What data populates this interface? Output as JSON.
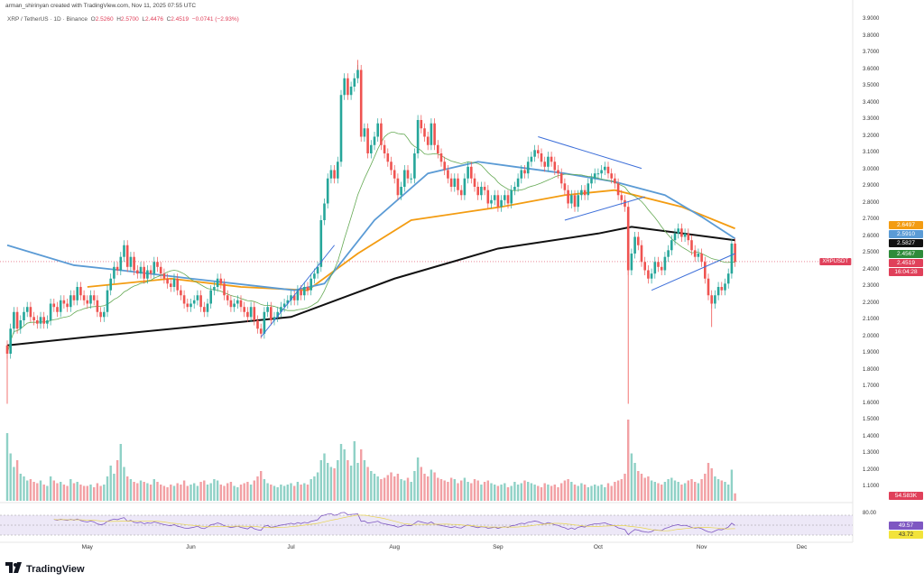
{
  "credit": "arman_shirinyan created with TradingView.com, Nov 11, 2025 07:55 UTC",
  "legend": {
    "symbol": "XRP / TetherUS · 1D · Binance",
    "o_label": "O",
    "o": "2.5260",
    "h_label": "H",
    "h": "2.5700",
    "l_label": "L",
    "l": "2.4476",
    "c_label": "C",
    "c": "2.4519",
    "change": "−0.0741 (−2.93%)"
  },
  "brand": "TradingView",
  "tags": {
    "ma_orange": {
      "text": "2.6497",
      "color": "#f39c12"
    },
    "ma_blue": {
      "text": "2.5910",
      "color": "#5b9bd5"
    },
    "ma_black": {
      "text": "2.5827",
      "color": "#111111"
    },
    "ma_green": {
      "text": "2.4567",
      "color": "#2e8b3a"
    },
    "price": {
      "text": "2.4519",
      "color": "#e0405a"
    },
    "countdown": {
      "text": "16:04:28",
      "color": "#e0405a"
    },
    "symbol": "XRPUSDT",
    "volume": {
      "text": "54.583K",
      "color": "#e0405a"
    },
    "rsi": {
      "text": "49.57",
      "color": "#7e57c2"
    },
    "rsi_ma": {
      "text": "43.72",
      "color": "#f2e33a"
    },
    "rsi_level": "80.00"
  },
  "chart_data": {
    "type": "candlestick",
    "price_ticks": [
      "3.9000",
      "3.8000",
      "3.7000",
      "3.6000",
      "3.5000",
      "3.4000",
      "3.3000",
      "3.2000",
      "3.1000",
      "3.0000",
      "2.9000",
      "2.8000",
      "2.7000",
      "2.6000",
      "2.5000",
      "2.4000",
      "2.3000",
      "2.2000",
      "2.1000",
      "2.0000",
      "1.9000",
      "1.8000",
      "1.7000",
      "1.6000",
      "1.5000",
      "1.4000",
      "1.3000",
      "1.2000",
      "1.1000"
    ],
    "x_ticks": [
      "May",
      "Jun",
      "Jul",
      "Aug",
      "Sep",
      "Oct",
      "Nov",
      "Dec"
    ],
    "closes": {
      "Apr": [
        1.9,
        2.05,
        2.15,
        2.05,
        2.1,
        2.15,
        2.18,
        2.12,
        2.1,
        2.08,
        2.12,
        2.08,
        2.1,
        2.2,
        2.18,
        2.15,
        2.22,
        2.2,
        2.18,
        2.25,
        2.22,
        2.3,
        2.25,
        2.22
      ],
      "May": [
        2.2,
        2.25,
        2.22,
        2.15,
        2.12,
        2.15,
        2.28,
        2.35,
        2.42,
        2.4,
        2.48,
        2.55,
        2.42,
        2.48,
        2.4,
        2.38,
        2.42,
        2.35,
        2.4,
        2.38,
        2.45,
        2.42,
        2.38,
        2.35,
        2.32,
        2.3,
        2.35,
        2.28,
        2.25,
        2.2,
        2.18
      ],
      "Jun": [
        2.2,
        2.22,
        2.25,
        2.18,
        2.15,
        2.2,
        2.28,
        2.3,
        2.35,
        2.32,
        2.25,
        2.22,
        2.18,
        2.2,
        2.22,
        2.18,
        2.15,
        2.12,
        2.18,
        2.1,
        2.05,
        2.02,
        2.15,
        2.18,
        2.1,
        2.12,
        2.15,
        2.18,
        2.2,
        2.22
      ],
      "Jul": [
        2.25,
        2.22,
        2.28,
        2.25,
        2.3,
        2.28,
        2.35,
        2.38,
        2.42,
        2.7,
        2.8,
        2.95,
        3.0,
        2.95,
        3.05,
        3.45,
        3.55,
        3.45,
        3.5,
        3.55,
        3.6,
        3.2,
        3.25,
        3.1,
        3.15,
        3.2,
        3.28,
        3.15,
        3.1,
        3.05,
        3.0
      ],
      "Aug": [
        2.95,
        2.85,
        2.9,
        3.0,
        2.95,
        2.95,
        3.1,
        3.3,
        3.25,
        3.2,
        3.15,
        3.28,
        3.15,
        3.1,
        3.05,
        3.0,
        2.95,
        2.9,
        2.95,
        2.88,
        2.85,
        2.95,
        3.02,
        2.95,
        2.9,
        2.85,
        2.9,
        2.88,
        2.8,
        2.82,
        2.85
      ],
      "Sep": [
        2.78,
        2.82,
        2.85,
        2.8,
        2.88,
        2.9,
        2.95,
        3.0,
        2.98,
        3.05,
        3.08,
        3.12,
        3.1,
        3.05,
        3.02,
        3.08,
        3.05,
        3.0,
        2.98,
        2.92,
        2.88,
        2.8,
        2.85,
        2.78,
        2.85,
        2.88,
        2.85,
        2.92,
        2.95,
        2.98
      ],
      "Oct": [
        2.98,
        3.0,
        3.02,
        2.98,
        2.95,
        2.92,
        2.85,
        2.82,
        2.78,
        2.4,
        2.5,
        2.6,
        2.55,
        2.45,
        2.4,
        2.35,
        2.38,
        2.45,
        2.42,
        2.4,
        2.48,
        2.52,
        2.58,
        2.62,
        2.65,
        2.6,
        2.62,
        2.58,
        2.52,
        2.48,
        2.5
      ],
      "Nov": [
        2.45,
        2.35,
        2.25,
        2.2,
        2.25,
        2.3,
        2.28,
        2.32,
        2.38,
        2.56,
        2.45
      ]
    },
    "long_wicks": [
      [
        "Apr",
        0,
        1.6
      ],
      [
        "Oct",
        9,
        1.6
      ],
      [
        "Jul",
        20,
        3.66
      ],
      [
        "Nov",
        3,
        2.06
      ]
    ],
    "volume_m": {
      "Apr": [
        500,
        350,
        250,
        300,
        200,
        180,
        150,
        160,
        140,
        130,
        150,
        120,
        110,
        180,
        150,
        130,
        140,
        120,
        110,
        160,
        130,
        140,
        120,
        110
      ],
      "May": [
        110,
        120,
        100,
        130,
        110,
        120,
        180,
        260,
        200,
        300,
        420,
        250,
        180,
        160,
        140,
        130,
        150,
        140,
        130,
        120,
        160,
        140,
        120,
        110,
        100,
        120,
        110,
        130,
        120,
        150,
        110
      ],
      "Jun": [
        120,
        130,
        110,
        140,
        150,
        120,
        130,
        160,
        150,
        120,
        110,
        130,
        140,
        110,
        100,
        120,
        130,
        140,
        120,
        150,
        180,
        220,
        160,
        130,
        120,
        110,
        100,
        120,
        110,
        120
      ],
      "Jul": [
        130,
        110,
        140,
        120,
        130,
        120,
        160,
        180,
        210,
        300,
        350,
        280,
        250,
        240,
        300,
        420,
        380,
        300,
        260,
        440,
        280,
        380,
        300,
        250,
        220,
        200,
        180,
        160,
        170,
        190,
        210
      ],
      "Aug": [
        180,
        200,
        160,
        150,
        170,
        140,
        220,
        320,
        250,
        200,
        180,
        230,
        210,
        170,
        160,
        150,
        140,
        170,
        160,
        130,
        150,
        170,
        140,
        130,
        160,
        150,
        120,
        140,
        150,
        130,
        120
      ],
      "Sep": [
        110,
        120,
        130,
        100,
        110,
        140,
        120,
        130,
        150,
        140,
        130,
        120,
        110,
        100,
        130,
        120,
        110,
        120,
        100,
        130,
        150,
        160,
        140,
        120,
        110,
        130,
        120,
        100,
        110,
        120
      ],
      "Oct": [
        110,
        120,
        100,
        130,
        110,
        140,
        150,
        160,
        200,
        600,
        350,
        280,
        220,
        200,
        170,
        180,
        150,
        140,
        130,
        120,
        140,
        160,
        170,
        150,
        140,
        120,
        130,
        150,
        160,
        140,
        130
      ],
      "Nov": [
        160,
        200,
        280,
        240,
        180,
        160,
        150,
        140,
        120,
        230,
        55
      ]
    },
    "moving_averages": [
      {
        "color": "#111111",
        "points": [
          [
            "Apr",
            0,
            1.95
          ],
          [
            "May",
            0,
            2.0
          ],
          [
            "Jun",
            0,
            2.06
          ],
          [
            "Jul",
            0,
            2.12
          ],
          [
            "Aug",
            0,
            2.35
          ],
          [
            "Sep",
            0,
            2.53
          ],
          [
            "Oct",
            0,
            2.62
          ],
          [
            "Oct",
            10,
            2.66
          ],
          [
            "Nov",
            10,
            2.58
          ]
        ]
      },
      {
        "color": "#f39c12",
        "points": [
          [
            "May",
            0,
            2.3
          ],
          [
            "May",
            25,
            2.35
          ],
          [
            "Jun",
            15,
            2.3
          ],
          [
            "Jul",
            5,
            2.28
          ],
          [
            "Jul",
            20,
            2.5
          ],
          [
            "Aug",
            5,
            2.7
          ],
          [
            "Sep",
            1,
            2.78
          ],
          [
            "Sep",
            20,
            2.85
          ],
          [
            "Oct",
            5,
            2.88
          ],
          [
            "Oct",
            25,
            2.78
          ],
          [
            "Nov",
            10,
            2.65
          ]
        ]
      },
      {
        "color": "#5b9bd5",
        "points": [
          [
            "Apr",
            0,
            2.55
          ],
          [
            "Apr",
            20,
            2.43
          ],
          [
            "May",
            10,
            2.4
          ],
          [
            "Jun",
            0,
            2.35
          ],
          [
            "Jul",
            1,
            2.28
          ],
          [
            "Jul",
            10,
            2.32
          ],
          [
            "Jul",
            25,
            2.7
          ],
          [
            "Aug",
            10,
            2.98
          ],
          [
            "Aug",
            25,
            3.05
          ],
          [
            "Sep",
            5,
            3.02
          ],
          [
            "Sep",
            20,
            2.98
          ],
          [
            "Oct",
            5,
            2.93
          ],
          [
            "Oct",
            20,
            2.85
          ],
          [
            "Nov",
            0,
            2.72
          ],
          [
            "Nov",
            10,
            2.59
          ]
        ]
      }
    ],
    "trendlines": [
      [
        [
          "Jun",
          21,
          2.0
        ],
        [
          "Jul",
          13,
          2.55
        ]
      ],
      [
        [
          "Sep",
          12,
          3.2
        ],
        [
          "Oct",
          13,
          3.01
        ]
      ],
      [
        [
          "Sep",
          20,
          2.7
        ],
        [
          "Oct",
          14,
          2.84
        ]
      ],
      [
        [
          "Oct",
          16,
          2.28
        ],
        [
          "Nov",
          10,
          2.5
        ]
      ]
    ],
    "rsi_levels": [
      80,
      50,
      20
    ]
  }
}
